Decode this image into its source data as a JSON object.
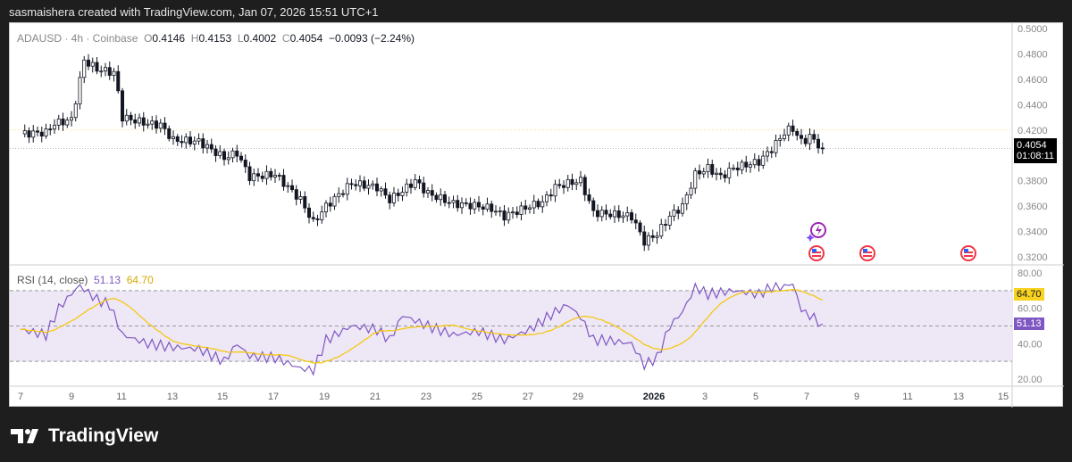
{
  "header": {
    "caption": "sasmaishera created with TradingView.com, Jan 07, 2026 15:51 UTC+1"
  },
  "legend": {
    "symbol": "ADAUSD · 4h · Coinbase",
    "o_label": "O",
    "o": "0.4146",
    "h_label": "H",
    "h": "0.4153",
    "l_label": "L",
    "l": "0.4002",
    "c_label": "C",
    "c": "0.4054",
    "change": "−0.0093 (−2.24%)"
  },
  "rsi_legend": {
    "label": "RSI (14, close)",
    "value": "51.13",
    "ma": "64.70"
  },
  "price_tag": {
    "price": "0.4054",
    "countdown": "01:08:11"
  },
  "brand": {
    "name": "TradingView"
  },
  "colors": {
    "up": "#ffffff",
    "down": "#131722",
    "rsi": "#7e57c2",
    "rsi_ma": "#f7c600",
    "band": "#ede7f6"
  },
  "icons": [
    "lightning-event-icon",
    "us-flag-event-icon",
    "us-flag-event-icon",
    "us-flag-event-icon"
  ],
  "chart_data": [
    {
      "type": "candlestick",
      "symbol": "ADAUSD",
      "interval": "4h",
      "yticks": [
        "0.5000",
        "0.4800",
        "0.4600",
        "0.4400",
        "0.4200",
        "0.4054",
        "0.3800",
        "0.3600",
        "0.3400",
        "0.3200"
      ],
      "ylim": [
        0.32,
        0.5
      ],
      "xticks": [
        "7",
        "9",
        "11",
        "13",
        "15",
        "17",
        "19",
        "21",
        "23",
        "25",
        "27",
        "29",
        "2026",
        "3",
        "5",
        "7",
        "9",
        "11",
        "13",
        "15"
      ],
      "close_path": [
        [
          "Dec 7",
          0.417
        ],
        [
          "Dec 8",
          0.418
        ],
        [
          "Dec 8.3",
          0.425
        ],
        [
          "Dec 9",
          0.428
        ],
        [
          "Dec 9.5",
          0.475
        ],
        [
          "Dec 10",
          0.468
        ],
        [
          "Dec 10.7",
          0.465
        ],
        [
          "Dec 11",
          0.43
        ],
        [
          "Dec 12",
          0.425
        ],
        [
          "Dec 12.5",
          0.424
        ],
        [
          "Dec 13",
          0.412
        ],
        [
          "Dec 14",
          0.411
        ],
        [
          "Dec 15",
          0.398
        ],
        [
          "Dec 15.5",
          0.402
        ],
        [
          "Dec 16",
          0.383
        ],
        [
          "Dec 17",
          0.385
        ],
        [
          "Dec 17.5",
          0.375
        ],
        [
          "Dec 18",
          0.365
        ],
        [
          "Dec 18.5",
          0.347
        ],
        [
          "Dec 19",
          0.36
        ],
        [
          "Dec 20",
          0.378
        ],
        [
          "Dec 21",
          0.375
        ],
        [
          "Dec 21.5",
          0.365
        ],
        [
          "Dec 22",
          0.372
        ],
        [
          "Dec 22.5",
          0.38
        ],
        [
          "Dec 23",
          0.37
        ],
        [
          "Dec 24",
          0.362
        ],
        [
          "Dec 25",
          0.36
        ],
        [
          "Dec 25.5",
          0.358
        ],
        [
          "Dec 26",
          0.352
        ],
        [
          "Dec 27",
          0.36
        ],
        [
          "Dec 27.5",
          0.363
        ],
        [
          "Dec 28",
          0.375
        ],
        [
          "Dec 28.5",
          0.378
        ],
        [
          "Dec 29",
          0.38
        ],
        [
          "Dec 29.5",
          0.355
        ],
        [
          "Dec 30",
          0.354
        ],
        [
          "Dec 31",
          0.352
        ],
        [
          "Dec 31.5",
          0.332
        ],
        [
          "Jan 1",
          0.338
        ],
        [
          "Jan 1.5",
          0.352
        ],
        [
          "Jan 2",
          0.36
        ],
        [
          "Jan 2.5",
          0.385
        ],
        [
          "Jan 3",
          0.39
        ],
        [
          "Jan 3.5",
          0.383
        ],
        [
          "Jan 4",
          0.39
        ],
        [
          "Jan 5",
          0.395
        ],
        [
          "Jan 5.5",
          0.405
        ],
        [
          "Jan 6",
          0.418
        ],
        [
          "Jan 6.3",
          0.422
        ],
        [
          "Jan 6.7",
          0.41
        ],
        [
          "Jan 7",
          0.415
        ],
        [
          "Jan 7.5",
          0.4054
        ]
      ]
    },
    {
      "type": "line",
      "name": "RSI (14, close)",
      "ylim": [
        20,
        80
      ],
      "yticks": [
        "80.00",
        "64.70",
        "60.00",
        "51.13",
        "40.00",
        "20.00"
      ],
      "bands": [
        30,
        50,
        70
      ],
      "rsi_path": [
        [
          "Dec 7",
          48
        ],
        [
          "Dec 8",
          45
        ],
        [
          "Dec 8.5",
          60
        ],
        [
          "Dec 9.3",
          73
        ],
        [
          "Dec 10",
          65
        ],
        [
          "Dec 10.5",
          62
        ],
        [
          "Dec 11",
          45
        ],
        [
          "Dec 12",
          40
        ],
        [
          "Dec 13",
          38
        ],
        [
          "Dec 14",
          37
        ],
        [
          "Dec 15",
          30
        ],
        [
          "Dec 15.5",
          40
        ],
        [
          "Dec 16",
          33
        ],
        [
          "Dec 17",
          32
        ],
        [
          "Dec 18",
          26
        ],
        [
          "Dec 18.5",
          25
        ],
        [
          "Dec 19",
          42
        ],
        [
          "Dec 20",
          50
        ],
        [
          "Dec 21",
          48
        ],
        [
          "Dec 21.5",
          42
        ],
        [
          "Dec 22",
          56
        ],
        [
          "Dec 23",
          50
        ],
        [
          "Dec 24",
          45
        ],
        [
          "Dec 25",
          47
        ],
        [
          "Dec 26",
          42
        ],
        [
          "Dec 27",
          48
        ],
        [
          "Dec 28",
          58
        ],
        [
          "Dec 28.5",
          62
        ],
        [
          "Dec 29",
          55
        ],
        [
          "Dec 29.5",
          42
        ],
        [
          "Dec 30",
          42
        ],
        [
          "Dec 31",
          40
        ],
        [
          "Dec 31.5",
          28
        ],
        [
          "Jan 1",
          32
        ],
        [
          "Jan 1.5",
          50
        ],
        [
          "Jan 2",
          58
        ],
        [
          "Jan 2.5",
          72
        ],
        [
          "Jan 3",
          68
        ],
        [
          "Jan 4",
          70
        ],
        [
          "Jan 5",
          68
        ],
        [
          "Jan 5.5",
          72
        ],
        [
          "Jan 6",
          72
        ],
        [
          "Jan 6.3",
          75
        ],
        [
          "Jan 6.7",
          58
        ],
        [
          "Jan 7",
          56
        ],
        [
          "Jan 7.5",
          51.13
        ]
      ]
    }
  ]
}
